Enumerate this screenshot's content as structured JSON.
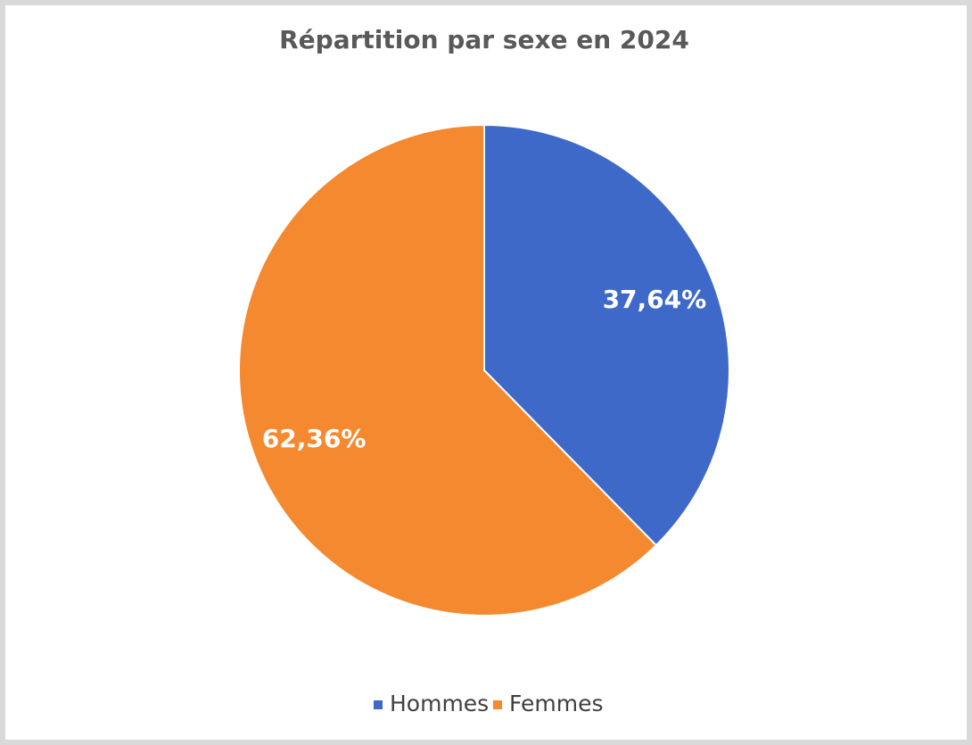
{
  "chart_data": {
    "type": "pie",
    "title": "Répartition par sexe en 2024",
    "categories": [
      "Hommes",
      "Femmes"
    ],
    "values": [
      37.64,
      62.36
    ],
    "value_labels": [
      "37,64%",
      "62,36%"
    ],
    "colors": [
      "#3f69c9",
      "#f4892f"
    ],
    "legend": "bottom"
  }
}
